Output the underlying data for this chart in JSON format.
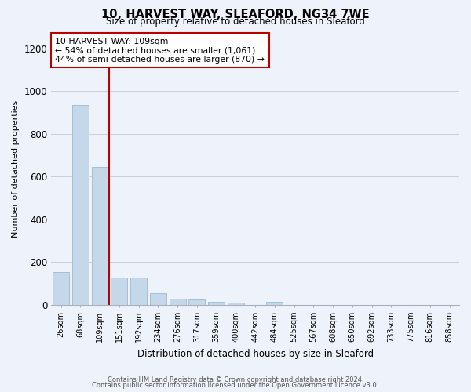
{
  "title": "10, HARVEST WAY, SLEAFORD, NG34 7WE",
  "subtitle": "Size of property relative to detached houses in Sleaford",
  "xlabel": "Distribution of detached houses by size in Sleaford",
  "ylabel": "Number of detached properties",
  "bar_color": "#c5d8ea",
  "bar_edge_color": "#9bb8d0",
  "background_color": "#eef2fa",
  "grid_color": "#c8cfe0",
  "vline_color": "#bb0000",
  "vline_x_index": 2,
  "annotation_text": "10 HARVEST WAY: 109sqm\n← 54% of detached houses are smaller (1,061)\n44% of semi-detached houses are larger (870) →",
  "annotation_box_facecolor": "#ffffff",
  "annotation_box_edgecolor": "#bb0000",
  "categories": [
    "26sqm",
    "68sqm",
    "109sqm",
    "151sqm",
    "192sqm",
    "234sqm",
    "276sqm",
    "317sqm",
    "359sqm",
    "400sqm",
    "442sqm",
    "484sqm",
    "525sqm",
    "567sqm",
    "608sqm",
    "650sqm",
    "692sqm",
    "733sqm",
    "775sqm",
    "816sqm",
    "858sqm"
  ],
  "values": [
    155,
    935,
    645,
    130,
    130,
    55,
    30,
    25,
    15,
    12,
    0,
    15,
    0,
    0,
    0,
    0,
    0,
    0,
    0,
    0,
    0
  ],
  "ylim": [
    0,
    1270
  ],
  "yticks": [
    0,
    200,
    400,
    600,
    800,
    1000,
    1200
  ],
  "footer1": "Contains HM Land Registry data © Crown copyright and database right 2024.",
  "footer2": "Contains public sector information licensed under the Open Government Licence v3.0."
}
